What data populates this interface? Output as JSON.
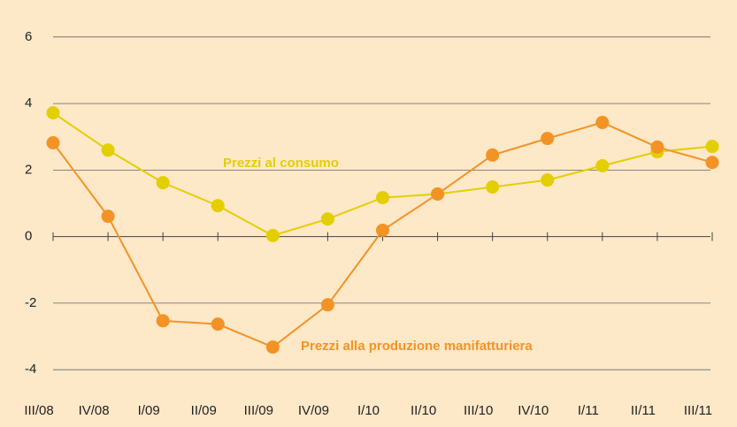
{
  "chart_data": {
    "type": "line",
    "categories": [
      "III/08",
      "IV/08",
      "I/09",
      "II/09",
      "III/09",
      "IV/09",
      "I/10",
      "II/10",
      "III/10",
      "IV/10",
      "I/11",
      "II/11",
      "III/11"
    ],
    "series": [
      {
        "name": "Prezzi al consumo",
        "color": "#e3cf00",
        "values": [
          3.72,
          2.6,
          1.62,
          0.93,
          0.03,
          0.53,
          1.17,
          1.28,
          1.49,
          1.7,
          2.13,
          2.55,
          2.71
        ]
      },
      {
        "name": "Prezzi alla produzione manifatturiera",
        "color": "#f39325",
        "values": [
          2.82,
          0.61,
          -2.53,
          -2.63,
          -3.32,
          -2.05,
          0.19,
          1.28,
          2.45,
          2.95,
          3.43,
          2.69,
          2.23
        ]
      }
    ],
    "ylim": [
      -4.5,
      6.5
    ],
    "yticks": [
      -4,
      -2,
      0,
      2,
      4,
      6
    ],
    "grid": true
  }
}
